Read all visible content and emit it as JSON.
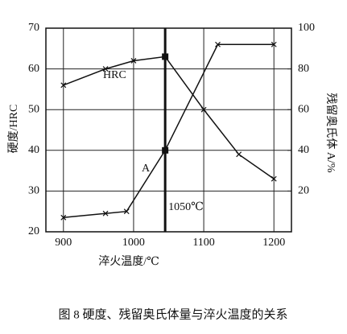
{
  "chart_data": {
    "type": "line",
    "caption": "图 8  硬度、残留奥氏体量与淬火温度的关系",
    "x_label": "淬火温度/℃",
    "y_label": "硬度/HRC",
    "y2_label": "残留奥氏体 A/%",
    "xlim": [
      875,
      1225
    ],
    "xticks": [
      900,
      1000,
      1100,
      1200
    ],
    "ylim": [
      20,
      70
    ],
    "yticks": [
      20,
      30,
      40,
      50,
      60,
      70
    ],
    "y2lim": [
      0,
      100
    ],
    "y2ticks": [
      20,
      40,
      60,
      80,
      100
    ],
    "grid": true,
    "vline": {
      "x": 1045,
      "label": "1050℃"
    },
    "series": [
      {
        "name": "HRC",
        "color": "#111111",
        "x": [
          900,
          960,
          1000,
          1045,
          1100,
          1150,
          1200
        ],
        "values": [
          56,
          60,
          62,
          63,
          50,
          39,
          33
        ]
      },
      {
        "name": "A",
        "color": "#111111",
        "axis": "y2",
        "x": [
          900,
          960,
          990,
          1045,
          1120,
          1200
        ],
        "values": [
          7,
          9,
          10,
          40,
          92,
          92
        ]
      }
    ]
  }
}
